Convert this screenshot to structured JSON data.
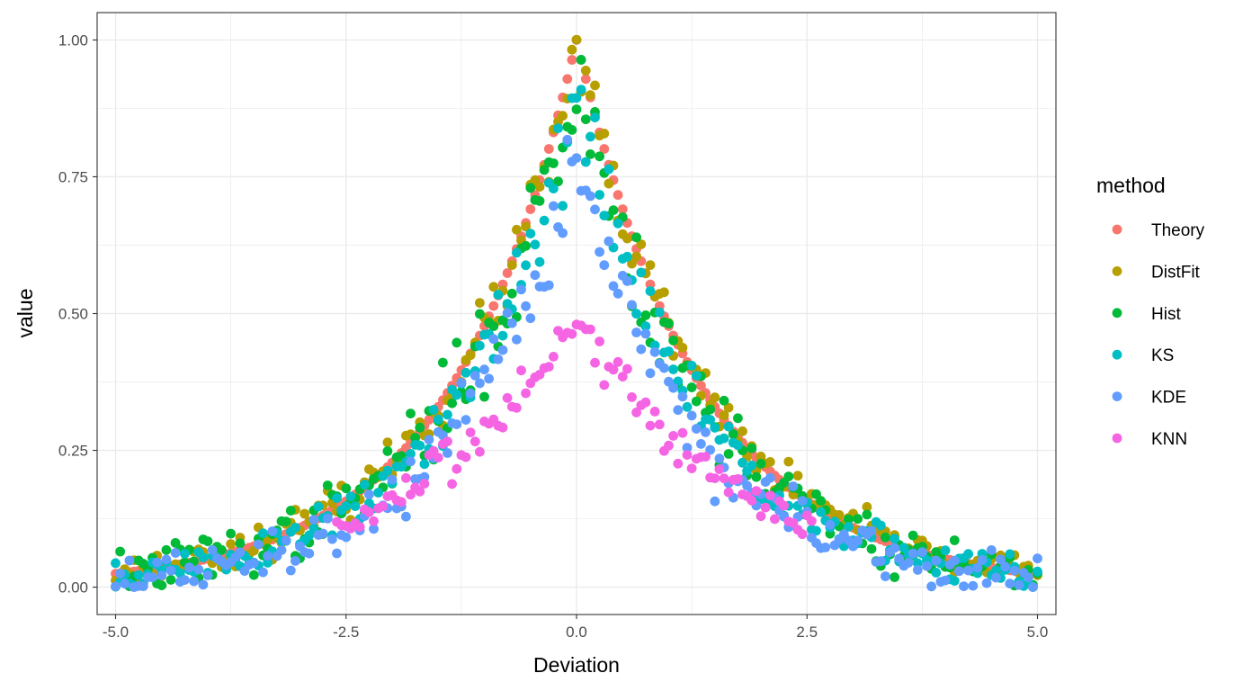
{
  "chart_data": {
    "type": "scatter",
    "xlabel": "Deviation",
    "ylabel": "value",
    "xlim": [
      -5.2,
      5.2
    ],
    "ylim": [
      -0.05,
      1.05
    ],
    "x_ticks": [
      -5.0,
      -2.5,
      0.0,
      2.5,
      5.0
    ],
    "x_tick_labels": [
      "-5.0",
      "-2.5",
      "0.0",
      "2.5",
      "5.0"
    ],
    "y_ticks": [
      0.0,
      0.25,
      0.5,
      0.75,
      1.0
    ],
    "y_tick_labels": [
      "0.00",
      "0.25",
      "0.50",
      "0.75",
      "1.00"
    ],
    "grid": true,
    "theme": "bw",
    "legend": {
      "title": "method",
      "position": "right"
    },
    "point_count_per_series": 201,
    "x_step": 0.05,
    "series": [
      {
        "name": "Theory",
        "color": "#F8766D",
        "peak": 1.0,
        "decay_rate": 0.74,
        "noise": 0.0,
        "seed": 11
      },
      {
        "name": "DistFit",
        "color": "#B79F00",
        "peak": 0.97,
        "decay_rate": 0.72,
        "noise": 0.03,
        "seed": 23
      },
      {
        "name": "Hist",
        "color": "#00BA38",
        "peak": 0.93,
        "decay_rate": 0.73,
        "noise": 0.05,
        "seed": 37
      },
      {
        "name": "KS",
        "color": "#00BFC4",
        "peak": 0.89,
        "decay_rate": 0.75,
        "noise": 0.04,
        "seed": 51
      },
      {
        "name": "KDE",
        "color": "#619CFF",
        "peak": 0.8,
        "decay_rate": 0.8,
        "noise": 0.045,
        "seed": 67
      },
      {
        "name": "KNN",
        "color": "#F564E3",
        "peak": 0.5,
        "decay_rate": 0.58,
        "noise": 0.03,
        "seed": 83,
        "x_range": [
          -2.6,
          2.6
        ]
      }
    ]
  }
}
